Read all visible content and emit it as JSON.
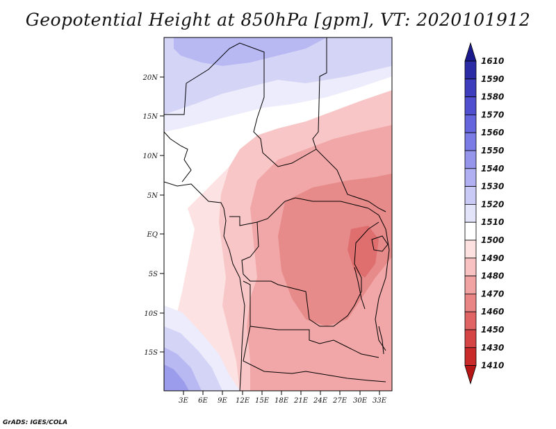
{
  "title": "Geopotential Height at 850hPa [gpm], VT: 2020101912",
  "credit": "GrADS: IGES/COLA",
  "axes": {
    "lat_labels": [
      "20N",
      "15N",
      "10N",
      "5N",
      "EQ",
      "5S",
      "10S",
      "15S"
    ],
    "lat_values": [
      20,
      15,
      10,
      5,
      0,
      -5,
      -10,
      -15
    ],
    "lon_labels": [
      "3E",
      "6E",
      "9E",
      "12E",
      "15E",
      "18E",
      "21E",
      "24E",
      "27E",
      "30E",
      "33E"
    ],
    "lon_values": [
      3,
      6,
      9,
      12,
      15,
      18,
      21,
      24,
      27,
      30,
      33
    ],
    "lon_range": [
      0,
      35
    ],
    "lat_range": [
      -20,
      25
    ]
  },
  "colorbar": {
    "levels": [
      "1610",
      "1590",
      "1580",
      "1570",
      "1560",
      "1550",
      "1540",
      "1530",
      "1520",
      "1510",
      "1500",
      "1490",
      "1480",
      "1470",
      "1460",
      "1450",
      "1430",
      "1410"
    ],
    "colors": [
      "#1a1a8c",
      "#2b2ba6",
      "#3d3dbd",
      "#4f4fcf",
      "#6565dd",
      "#7c7ce6",
      "#9595ec",
      "#b0b0f2",
      "#cacaf6",
      "#e3e3fa",
      "#ffffff",
      "#fde0e0",
      "#f8c2c2",
      "#f1a3a3",
      "#e98585",
      "#e06464",
      "#d64545",
      "#c92a2a",
      "#b51515"
    ]
  },
  "legend_colors": {
    "land_border": "#000000",
    "field_1520": "#d4d4f7",
    "field_1510": "#ececfc",
    "field_1500": "#ffffff",
    "field_1490": "#fce2e2",
    "field_1480": "#f8c6c6",
    "field_1470": "#f1a7a7",
    "field_1460": "#e68a8a",
    "field_1450": "#df6f6f"
  }
}
